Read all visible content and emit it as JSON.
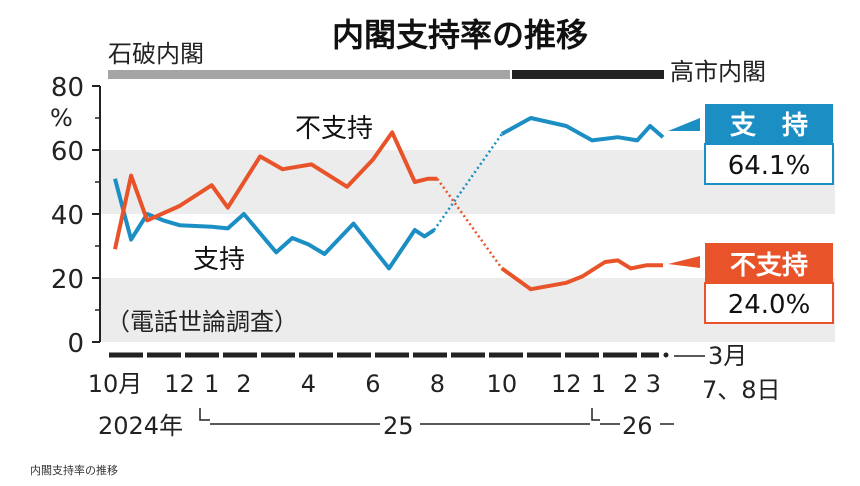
{
  "caption": "内閣支持率の推移",
  "chart_data": {
    "type": "line",
    "title": "内閣支持率の推移",
    "subtitle": "（電話世論調査）",
    "ylabel_unit": "%",
    "ylim": [
      0,
      80
    ],
    "yticks": [
      0,
      20,
      40,
      60,
      80
    ],
    "yticks_labels": [
      "0",
      "20",
      "40",
      "60",
      "80"
    ],
    "period_labels": [
      {
        "label": "石破内閣",
        "from": 0,
        "to": 11.5
      },
      {
        "label": "高市内閣",
        "from": 11.5,
        "to": 17
      }
    ],
    "x_tick_labels": [
      {
        "x": 0,
        "label": "10月"
      },
      {
        "x": 2,
        "label": "12"
      },
      {
        "x": 3,
        "label": "1"
      },
      {
        "x": 4,
        "label": "2"
      },
      {
        "x": 6,
        "label": "4"
      },
      {
        "x": 8,
        "label": "6"
      },
      {
        "x": 10,
        "label": "8"
      },
      {
        "x": 12,
        "label": "10"
      },
      {
        "x": 14,
        "label": "12"
      },
      {
        "x": 15,
        "label": "1"
      },
      {
        "x": 16,
        "label": "2"
      },
      {
        "x": 16.7,
        "label": "3"
      }
    ],
    "latest_label_line1": "3月",
    "latest_label_line2": "7、8日",
    "year_labels": [
      "2024年",
      "25",
      "26"
    ],
    "series": [
      {
        "name": "支持",
        "color": "#1b8fc4",
        "points": [
          [
            0,
            51
          ],
          [
            0.5,
            32
          ],
          [
            1,
            40
          ],
          [
            1.5,
            38
          ],
          [
            2,
            36.5
          ],
          [
            3,
            36
          ],
          [
            3.5,
            35.5
          ],
          [
            4,
            40
          ],
          [
            5,
            28
          ],
          [
            5.5,
            32.5
          ],
          [
            6,
            30.5
          ],
          [
            6.5,
            27.5
          ],
          [
            7.4,
            37
          ],
          [
            8.5,
            23
          ],
          [
            9.3,
            35
          ],
          [
            9.6,
            33
          ],
          [
            9.9,
            35
          ]
        ],
        "points_new": [
          [
            12,
            65
          ],
          [
            12.9,
            70
          ],
          [
            14,
            67.5
          ],
          [
            14.8,
            63
          ],
          [
            15.6,
            64
          ],
          [
            16.2,
            63
          ],
          [
            16.6,
            67.5
          ],
          [
            17,
            64
          ]
        ],
        "final_label": "支　持",
        "final_value": "64.1%"
      },
      {
        "name": "不支持",
        "color": "#e8532a",
        "points": [
          [
            0,
            29
          ],
          [
            0.5,
            52
          ],
          [
            1,
            38
          ],
          [
            2,
            42.5
          ],
          [
            3,
            49
          ],
          [
            3.5,
            42
          ],
          [
            4.5,
            58
          ],
          [
            5.2,
            54
          ],
          [
            6.1,
            55.5
          ],
          [
            7.2,
            48.5
          ],
          [
            8,
            57
          ],
          [
            8.6,
            65.5
          ],
          [
            9.3,
            50
          ],
          [
            9.7,
            51
          ],
          [
            10,
            51
          ]
        ],
        "points_new": [
          [
            12,
            23
          ],
          [
            12.9,
            16.5
          ],
          [
            14,
            18.5
          ],
          [
            14.5,
            20.5
          ],
          [
            15.2,
            25
          ],
          [
            15.6,
            25.5
          ],
          [
            16,
            23
          ],
          [
            16.5,
            24
          ],
          [
            17,
            24
          ]
        ],
        "final_label": "不支持",
        "final_value": "24.0%"
      }
    ],
    "series_annotations": [
      "不支持",
      "支持"
    ]
  }
}
